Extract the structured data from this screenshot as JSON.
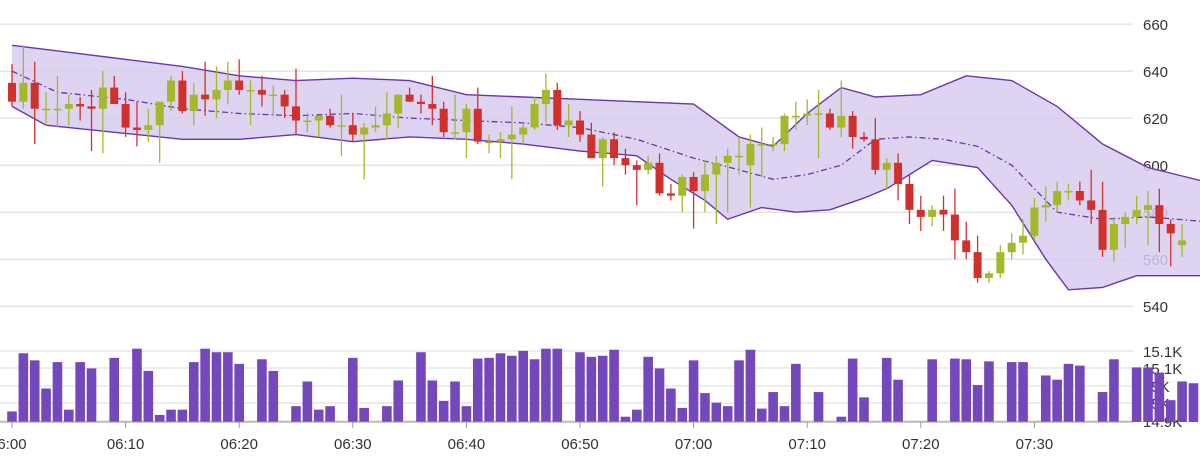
{
  "chart_data": [
    {
      "type": "candlestick",
      "title": "",
      "x_tick_labels": [
        "6:00",
        "06:10",
        "06:20",
        "06:30",
        "06:40",
        "06:50",
        "07:00",
        "07:10",
        "07:20",
        "07:30"
      ],
      "y_tick_labels": [
        "660",
        "640",
        "620",
        "600",
        "580",
        "560",
        "540"
      ],
      "y_ticks": [
        660,
        640,
        620,
        600,
        580,
        560,
        540
      ],
      "ylim": [
        535,
        666
      ],
      "interval_minutes": 1,
      "grid": true,
      "colors": {
        "up": "#a4b82c",
        "down": "#d0312d",
        "band_fill": "#d8cbee",
        "band_line": "#6a35b0",
        "midline": "#6a35b0",
        "grid": "#d8d8d8"
      },
      "candles": [
        {
          "o": 635,
          "h": 643,
          "l": 625,
          "c": 627
        },
        {
          "o": 627,
          "h": 651,
          "l": 624,
          "c": 635
        },
        {
          "o": 635,
          "h": 644,
          "l": 609,
          "c": 624
        },
        {
          "o": 624,
          "h": 631,
          "l": 617,
          "c": 624
        },
        {
          "o": 624,
          "h": 638,
          "l": 616,
          "c": 624
        },
        {
          "o": 624,
          "h": 630,
          "l": 617,
          "c": 626
        },
        {
          "o": 626,
          "h": 629,
          "l": 619,
          "c": 625
        },
        {
          "o": 625,
          "h": 632,
          "l": 606,
          "c": 624
        },
        {
          "o": 624,
          "h": 640,
          "l": 605,
          "c": 633
        },
        {
          "o": 633,
          "h": 638,
          "l": 626,
          "c": 626
        },
        {
          "o": 626,
          "h": 631,
          "l": 612,
          "c": 616
        },
        {
          "o": 616,
          "h": 627,
          "l": 608,
          "c": 615
        },
        {
          "o": 615,
          "h": 624,
          "l": 610,
          "c": 617
        },
        {
          "o": 617,
          "h": 627,
          "l": 601,
          "c": 627
        },
        {
          "o": 627,
          "h": 638,
          "l": 623,
          "c": 636
        },
        {
          "o": 636,
          "h": 640,
          "l": 622,
          "c": 623
        },
        {
          "o": 623,
          "h": 635,
          "l": 617,
          "c": 630
        },
        {
          "o": 630,
          "h": 644,
          "l": 621,
          "c": 628
        },
        {
          "o": 628,
          "h": 642,
          "l": 620,
          "c": 632
        },
        {
          "o": 632,
          "h": 644,
          "l": 626,
          "c": 636
        },
        {
          "o": 636,
          "h": 645,
          "l": 630,
          "c": 632
        },
        {
          "o": 632,
          "h": 636,
          "l": 617,
          "c": 632
        },
        {
          "o": 632,
          "h": 638,
          "l": 625,
          "c": 630
        },
        {
          "o": 630,
          "h": 634,
          "l": 621,
          "c": 630
        },
        {
          "o": 630,
          "h": 632,
          "l": 620,
          "c": 625
        },
        {
          "o": 625,
          "h": 641,
          "l": 613,
          "c": 619
        },
        {
          "o": 619,
          "h": 622,
          "l": 614,
          "c": 619
        },
        {
          "o": 619,
          "h": 621,
          "l": 612,
          "c": 621
        },
        {
          "o": 621,
          "h": 624,
          "l": 616,
          "c": 617
        },
        {
          "o": 617,
          "h": 630,
          "l": 604,
          "c": 617
        },
        {
          "o": 617,
          "h": 622,
          "l": 610,
          "c": 613
        },
        {
          "o": 613,
          "h": 618,
          "l": 594,
          "c": 616
        },
        {
          "o": 616,
          "h": 625,
          "l": 614,
          "c": 617
        },
        {
          "o": 617,
          "h": 631,
          "l": 611,
          "c": 622
        },
        {
          "o": 622,
          "h": 630,
          "l": 616,
          "c": 630
        },
        {
          "o": 630,
          "h": 633,
          "l": 627,
          "c": 627
        },
        {
          "o": 627,
          "h": 630,
          "l": 622,
          "c": 626
        },
        {
          "o": 626,
          "h": 638,
          "l": 617,
          "c": 624
        },
        {
          "o": 624,
          "h": 627,
          "l": 612,
          "c": 614
        },
        {
          "o": 614,
          "h": 630,
          "l": 611,
          "c": 614
        },
        {
          "o": 614,
          "h": 626,
          "l": 603,
          "c": 624
        },
        {
          "o": 624,
          "h": 633,
          "l": 609,
          "c": 610
        },
        {
          "o": 610,
          "h": 613,
          "l": 605,
          "c": 610
        },
        {
          "o": 610,
          "h": 614,
          "l": 603,
          "c": 611
        },
        {
          "o": 611,
          "h": 625,
          "l": 594,
          "c": 613
        },
        {
          "o": 613,
          "h": 618,
          "l": 609,
          "c": 616
        },
        {
          "o": 616,
          "h": 629,
          "l": 615,
          "c": 626
        },
        {
          "o": 626,
          "h": 639,
          "l": 618,
          "c": 632
        },
        {
          "o": 632,
          "h": 635,
          "l": 615,
          "c": 617
        },
        {
          "o": 617,
          "h": 626,
          "l": 612,
          "c": 619
        },
        {
          "o": 619,
          "h": 623,
          "l": 610,
          "c": 613
        },
        {
          "o": 613,
          "h": 618,
          "l": 603,
          "c": 603
        },
        {
          "o": 603,
          "h": 612,
          "l": 591,
          "c": 611
        },
        {
          "o": 611,
          "h": 614,
          "l": 600,
          "c": 603
        },
        {
          "o": 603,
          "h": 607,
          "l": 596,
          "c": 600
        },
        {
          "o": 600,
          "h": 602,
          "l": 583,
          "c": 598
        },
        {
          "o": 598,
          "h": 604,
          "l": 596,
          "c": 601
        },
        {
          "o": 601,
          "h": 605,
          "l": 587,
          "c": 588
        },
        {
          "o": 588,
          "h": 592,
          "l": 585,
          "c": 587
        },
        {
          "o": 587,
          "h": 596,
          "l": 580,
          "c": 595
        },
        {
          "o": 595,
          "h": 597,
          "l": 573,
          "c": 589
        },
        {
          "o": 589,
          "h": 602,
          "l": 580,
          "c": 596
        },
        {
          "o": 596,
          "h": 604,
          "l": 575,
          "c": 601
        },
        {
          "o": 601,
          "h": 607,
          "l": 580,
          "c": 604
        },
        {
          "o": 604,
          "h": 612,
          "l": 596,
          "c": 604
        },
        {
          "o": 600,
          "h": 613,
          "l": 582,
          "c": 609
        },
        {
          "o": 609,
          "h": 616,
          "l": 595,
          "c": 609
        },
        {
          "o": 609,
          "h": 612,
          "l": 606,
          "c": 609
        },
        {
          "o": 609,
          "h": 622,
          "l": 606,
          "c": 621
        },
        {
          "o": 621,
          "h": 627,
          "l": 615,
          "c": 621
        },
        {
          "o": 621,
          "h": 628,
          "l": 617,
          "c": 622
        },
        {
          "o": 622,
          "h": 632,
          "l": 603,
          "c": 622
        },
        {
          "o": 622,
          "h": 624,
          "l": 615,
          "c": 616
        },
        {
          "o": 616,
          "h": 636,
          "l": 612,
          "c": 621
        },
        {
          "o": 621,
          "h": 623,
          "l": 607,
          "c": 612
        },
        {
          "o": 612,
          "h": 614,
          "l": 610,
          "c": 611
        },
        {
          "o": 611,
          "h": 620,
          "l": 596,
          "c": 598
        },
        {
          "o": 598,
          "h": 603,
          "l": 590,
          "c": 601
        },
        {
          "o": 601,
          "h": 605,
          "l": 585,
          "c": 592
        },
        {
          "o": 592,
          "h": 596,
          "l": 575,
          "c": 581
        },
        {
          "o": 581,
          "h": 587,
          "l": 572,
          "c": 578
        },
        {
          "o": 578,
          "h": 583,
          "l": 574,
          "c": 581
        },
        {
          "o": 581,
          "h": 587,
          "l": 572,
          "c": 579
        },
        {
          "o": 579,
          "h": 590,
          "l": 560,
          "c": 568
        },
        {
          "o": 568,
          "h": 576,
          "l": 560,
          "c": 563
        },
        {
          "o": 563,
          "h": 570,
          "l": 550,
          "c": 552
        },
        {
          "o": 552,
          "h": 555,
          "l": 550,
          "c": 554
        },
        {
          "o": 554,
          "h": 566,
          "l": 552,
          "c": 563
        },
        {
          "o": 563,
          "h": 571,
          "l": 560,
          "c": 567
        },
        {
          "o": 567,
          "h": 577,
          "l": 562,
          "c": 570
        },
        {
          "o": 570,
          "h": 586,
          "l": 568,
          "c": 582
        },
        {
          "o": 582,
          "h": 591,
          "l": 576,
          "c": 583
        },
        {
          "o": 583,
          "h": 593,
          "l": 580,
          "c": 589
        },
        {
          "o": 589,
          "h": 592,
          "l": 585,
          "c": 589
        },
        {
          "o": 589,
          "h": 593,
          "l": 583,
          "c": 585
        },
        {
          "o": 585,
          "h": 598,
          "l": 575,
          "c": 581
        },
        {
          "o": 581,
          "h": 593,
          "l": 561,
          "c": 564
        },
        {
          "o": 564,
          "h": 578,
          "l": 559,
          "c": 575
        },
        {
          "o": 575,
          "h": 580,
          "l": 565,
          "c": 578
        },
        {
          "o": 578,
          "h": 587,
          "l": 575,
          "c": 581
        },
        {
          "o": 581,
          "h": 589,
          "l": 566,
          "c": 583
        },
        {
          "o": 583,
          "h": 590,
          "l": 563,
          "c": 575
        },
        {
          "o": 575,
          "h": 577,
          "l": 557,
          "c": 571
        },
        {
          "o": 566,
          "h": 575,
          "l": 561,
          "c": 568
        }
      ],
      "band": {
        "upper": [
          [
            0,
            651
          ],
          [
            5,
            648
          ],
          [
            10,
            645
          ],
          [
            15,
            642
          ],
          [
            20,
            638
          ],
          [
            25,
            636
          ],
          [
            30,
            637
          ],
          [
            35,
            636
          ],
          [
            40,
            630
          ],
          [
            45,
            629
          ],
          [
            50,
            628
          ],
          [
            55,
            627
          ],
          [
            60,
            626
          ],
          [
            64,
            612
          ],
          [
            67,
            608
          ],
          [
            70,
            622
          ],
          [
            73,
            633
          ],
          [
            76,
            629
          ],
          [
            80,
            630
          ],
          [
            84,
            638
          ],
          [
            88,
            636
          ],
          [
            92,
            625
          ],
          [
            96,
            609
          ],
          [
            100,
            599
          ],
          [
            105,
            593
          ],
          [
            110,
            591
          ]
        ],
        "lower": [
          [
            0,
            625
          ],
          [
            3,
            617
          ],
          [
            7,
            615
          ],
          [
            11,
            613
          ],
          [
            15,
            611
          ],
          [
            20,
            611
          ],
          [
            25,
            613
          ],
          [
            30,
            610
          ],
          [
            35,
            612
          ],
          [
            40,
            611
          ],
          [
            45,
            609
          ],
          [
            50,
            606
          ],
          [
            55,
            604
          ],
          [
            58,
            594
          ],
          [
            61,
            585
          ],
          [
            63,
            577
          ],
          [
            66,
            582
          ],
          [
            69,
            580
          ],
          [
            72,
            581
          ],
          [
            75,
            586
          ],
          [
            77,
            590
          ],
          [
            81,
            602
          ],
          [
            85,
            599
          ],
          [
            88,
            583
          ],
          [
            91,
            560
          ],
          [
            93,
            547
          ],
          [
            96,
            548
          ],
          [
            99,
            553
          ],
          [
            105,
            553
          ],
          [
            108,
            555
          ],
          [
            110,
            560
          ]
        ],
        "mid": [
          [
            0,
            640
          ],
          [
            4,
            631
          ],
          [
            10,
            628
          ],
          [
            15,
            624
          ],
          [
            20,
            622
          ],
          [
            25,
            621
          ],
          [
            30,
            622
          ],
          [
            35,
            620
          ],
          [
            40,
            619
          ],
          [
            45,
            618
          ],
          [
            50,
            616
          ],
          [
            55,
            611
          ],
          [
            60,
            603
          ],
          [
            64,
            598
          ],
          [
            67,
            594
          ],
          [
            70,
            596
          ],
          [
            73,
            600
          ],
          [
            76,
            611
          ],
          [
            79,
            612
          ],
          [
            82,
            611
          ],
          [
            85,
            608
          ],
          [
            88,
            600
          ],
          [
            92,
            580
          ],
          [
            96,
            577
          ],
          [
            100,
            578
          ],
          [
            105,
            576
          ],
          [
            110,
            575
          ]
        ]
      }
    },
    {
      "type": "bar",
      "title": "",
      "series_name": "",
      "y_tick_labels": [
        "15.1K",
        "15.1K",
        "15K",
        "15K",
        "14.9K"
      ],
      "ylim": [
        14900,
        15110
      ],
      "grid": true,
      "color": "#7447bb",
      "values": [
        14930,
        15095,
        15075,
        14995,
        15070,
        14935,
        15070,
        15052,
        14900,
        15082,
        14900,
        15108,
        15045,
        14920,
        14935,
        14935,
        15070,
        15108,
        15098,
        15098,
        15065,
        14900,
        15078,
        15045,
        14900,
        14945,
        15015,
        14935,
        14945,
        14900,
        15082,
        14940,
        14900,
        14945,
        15018,
        14900,
        15098,
        15018,
        14960,
        15015,
        14945,
        15080,
        15082,
        15095,
        15088,
        15102,
        15078,
        15108,
        15108,
        14900,
        15098,
        15085,
        15088,
        15105,
        14915,
        14935,
        15085,
        15052,
        14995,
        14940,
        15075,
        14982,
        14955,
        14945,
        15075,
        15105,
        14938,
        14985,
        14945,
        15065,
        14900,
        14985,
        14900,
        14915,
        15080,
        14970,
        14900,
        15082,
        15020,
        14900,
        14900,
        15078,
        14900,
        15080,
        15078,
        15005,
        15072,
        14900,
        15070,
        15070,
        14900,
        15032,
        15020,
        15065,
        15060,
        14900,
        14985,
        15078,
        14900,
        15055,
        15055,
        15040,
        14962,
        15015,
        15010,
        14965,
        15070,
        15088,
        15035,
        15058,
        14900,
        15000
      ]
    }
  ]
}
